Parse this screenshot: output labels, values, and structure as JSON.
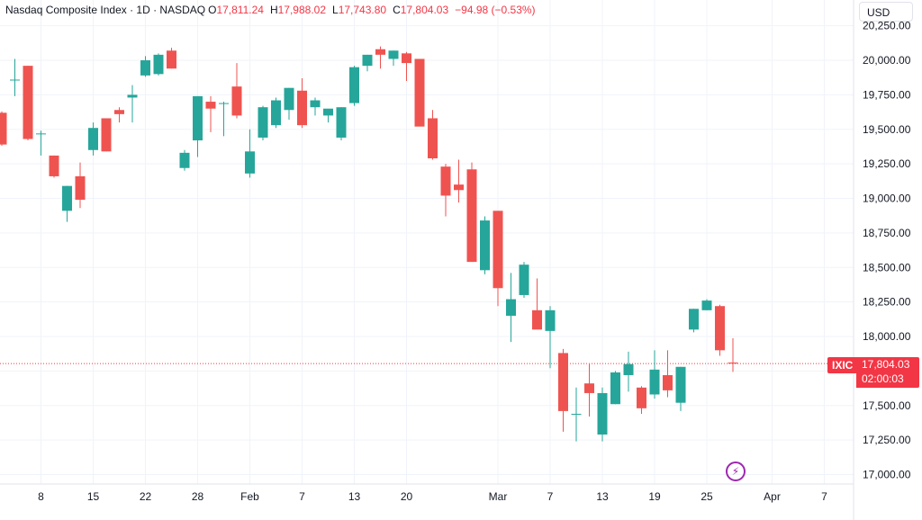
{
  "legend": {
    "symbol": "Nasdaq Composite Index · 1D · NASDAQ",
    "open_key": "O",
    "open": "17,811.24",
    "high_key": "H",
    "high": "17,988.02",
    "low_key": "L",
    "low": "17,743.80",
    "close_key": "C",
    "close": "17,804.03",
    "change": "−94.98 (−0.53%)"
  },
  "currency_button": "USD",
  "last_price": {
    "ticker": "IXIC",
    "price": "17,804.03",
    "countdown": "02:00:03",
    "value": 17804.03
  },
  "icons": {
    "events": "lightning-icon"
  },
  "colors": {
    "up": "#26a69a",
    "down": "#ef5350",
    "label": "#f23645",
    "grid": "#f0f3fa",
    "axis_text": "#131722"
  },
  "chart_data": {
    "type": "candlestick",
    "title": "Nasdaq Composite Index",
    "interval": "1D",
    "exchange": "NASDAQ",
    "ylim": [
      16950,
      20250
    ],
    "y_ticks": [
      {
        "value": 20250,
        "label": "20,250.00"
      },
      {
        "value": 20000,
        "label": "20,000.00"
      },
      {
        "value": 19750,
        "label": "19,750.00"
      },
      {
        "value": 19500,
        "label": "19,500.00"
      },
      {
        "value": 19250,
        "label": "19,250.00"
      },
      {
        "value": 19000,
        "label": "19,000.00"
      },
      {
        "value": 18750,
        "label": "18,750.00"
      },
      {
        "value": 18500,
        "label": "18,500.00"
      },
      {
        "value": 18250,
        "label": "18,250.00"
      },
      {
        "value": 18000,
        "label": "18,000.00"
      },
      {
        "value": 17750,
        "label": "17,750.00"
      },
      {
        "value": 17500,
        "label": "17,500.00"
      },
      {
        "value": 17250,
        "label": "17,250.00"
      },
      {
        "value": 17000,
        "label": "17,000.00"
      }
    ],
    "x_ticks": [
      {
        "bar": 3,
        "label": "8"
      },
      {
        "bar": 7,
        "label": "15"
      },
      {
        "bar": 11,
        "label": "22"
      },
      {
        "bar": 15,
        "label": "28"
      },
      {
        "bar": 19,
        "label": "Feb"
      },
      {
        "bar": 23,
        "label": "7"
      },
      {
        "bar": 27,
        "label": "13"
      },
      {
        "bar": 31,
        "label": "20"
      },
      {
        "bar": 38,
        "label": "Mar"
      },
      {
        "bar": 42,
        "label": "7"
      },
      {
        "bar": 46,
        "label": "13"
      },
      {
        "bar": 50,
        "label": "19"
      },
      {
        "bar": 54,
        "label": "25"
      },
      {
        "bar": 59,
        "label": "Apr"
      },
      {
        "bar": 63,
        "label": "7"
      }
    ],
    "candles": [
      {
        "o": 19620,
        "h": 19630,
        "l": 19380,
        "c": 19390
      },
      {
        "o": 19860,
        "h": 20010,
        "l": 19740,
        "c": 19860
      },
      {
        "o": 19960,
        "h": 19960,
        "l": 19420,
        "c": 19430
      },
      {
        "o": 19470,
        "h": 19490,
        "l": 19310,
        "c": 19470
      },
      {
        "o": 19310,
        "h": 19310,
        "l": 19150,
        "c": 19160
      },
      {
        "o": 18910,
        "h": 19090,
        "l": 18830,
        "c": 19090
      },
      {
        "o": 19160,
        "h": 19260,
        "l": 18930,
        "c": 18990
      },
      {
        "o": 19350,
        "h": 19550,
        "l": 19310,
        "c": 19510
      },
      {
        "o": 19580,
        "h": 19580,
        "l": 19340,
        "c": 19340
      },
      {
        "o": 19640,
        "h": 19660,
        "l": 19550,
        "c": 19610
      },
      {
        "o": 19730,
        "h": 19820,
        "l": 19550,
        "c": 19750
      },
      {
        "o": 19890,
        "h": 20030,
        "l": 19880,
        "c": 20000
      },
      {
        "o": 19900,
        "h": 20050,
        "l": 19890,
        "c": 20040
      },
      {
        "o": 20070,
        "h": 20090,
        "l": 19940,
        "c": 19940
      },
      {
        "o": 19220,
        "h": 19350,
        "l": 19200,
        "c": 19330
      },
      {
        "o": 19420,
        "h": 19740,
        "l": 19300,
        "c": 19740
      },
      {
        "o": 19700,
        "h": 19740,
        "l": 19480,
        "c": 19650
      },
      {
        "o": 19690,
        "h": 19700,
        "l": 19450,
        "c": 19690
      },
      {
        "o": 19810,
        "h": 19980,
        "l": 19580,
        "c": 19600
      },
      {
        "o": 19180,
        "h": 19500,
        "l": 19150,
        "c": 19340
      },
      {
        "o": 19440,
        "h": 19670,
        "l": 19420,
        "c": 19660
      },
      {
        "o": 19530,
        "h": 19730,
        "l": 19510,
        "c": 19710
      },
      {
        "o": 19640,
        "h": 19800,
        "l": 19570,
        "c": 19800
      },
      {
        "o": 19780,
        "h": 19870,
        "l": 19510,
        "c": 19530
      },
      {
        "o": 19660,
        "h": 19730,
        "l": 19600,
        "c": 19710
      },
      {
        "o": 19600,
        "h": 19630,
        "l": 19550,
        "c": 19650
      },
      {
        "o": 19440,
        "h": 19660,
        "l": 19420,
        "c": 19660
      },
      {
        "o": 19690,
        "h": 19960,
        "l": 19670,
        "c": 19950
      },
      {
        "o": 19960,
        "h": 20040,
        "l": 19920,
        "c": 20040
      },
      {
        "o": 20080,
        "h": 20100,
        "l": 19940,
        "c": 20040
      },
      {
        "o": 20010,
        "h": 20070,
        "l": 19960,
        "c": 20070
      },
      {
        "o": 20050,
        "h": 20060,
        "l": 19850,
        "c": 19980
      },
      {
        "o": 20010,
        "h": 20010,
        "l": 19520,
        "c": 19520
      },
      {
        "o": 19580,
        "h": 19640,
        "l": 19280,
        "c": 19290
      },
      {
        "o": 19230,
        "h": 19250,
        "l": 18870,
        "c": 19020
      },
      {
        "o": 19100,
        "h": 19280,
        "l": 18970,
        "c": 19060
      },
      {
        "o": 19210,
        "h": 19260,
        "l": 18540,
        "c": 18540
      },
      {
        "o": 18480,
        "h": 18870,
        "l": 18450,
        "c": 18840
      },
      {
        "o": 18910,
        "h": 18910,
        "l": 18220,
        "c": 18350
      },
      {
        "o": 18150,
        "h": 18460,
        "l": 17960,
        "c": 18270
      },
      {
        "o": 18300,
        "h": 18540,
        "l": 18280,
        "c": 18520
      },
      {
        "o": 18190,
        "h": 18420,
        "l": 18060,
        "c": 18050
      },
      {
        "o": 18040,
        "h": 18220,
        "l": 17770,
        "c": 18190
      },
      {
        "o": 17880,
        "h": 17910,
        "l": 17310,
        "c": 17460
      },
      {
        "o": 17440,
        "h": 17630,
        "l": 17240,
        "c": 17440
      },
      {
        "o": 17660,
        "h": 17800,
        "l": 17420,
        "c": 17590
      },
      {
        "o": 17290,
        "h": 17630,
        "l": 17240,
        "c": 17590
      },
      {
        "o": 17510,
        "h": 17750,
        "l": 17510,
        "c": 17740
      },
      {
        "o": 17720,
        "h": 17890,
        "l": 17600,
        "c": 17800
      },
      {
        "o": 17630,
        "h": 17640,
        "l": 17440,
        "c": 17480
      },
      {
        "o": 17580,
        "h": 17900,
        "l": 17550,
        "c": 17760
      },
      {
        "o": 17720,
        "h": 17900,
        "l": 17560,
        "c": 17610
      },
      {
        "o": 17520,
        "h": 17780,
        "l": 17460,
        "c": 17780
      },
      {
        "o": 18050,
        "h": 18200,
        "l": 18030,
        "c": 18200
      },
      {
        "o": 18190,
        "h": 18270,
        "l": 18190,
        "c": 18260
      },
      {
        "o": 18220,
        "h": 18230,
        "l": 17860,
        "c": 17900
      },
      {
        "o": 17811.24,
        "h": 17988.02,
        "l": 17743.8,
        "c": 17804.03
      }
    ]
  }
}
